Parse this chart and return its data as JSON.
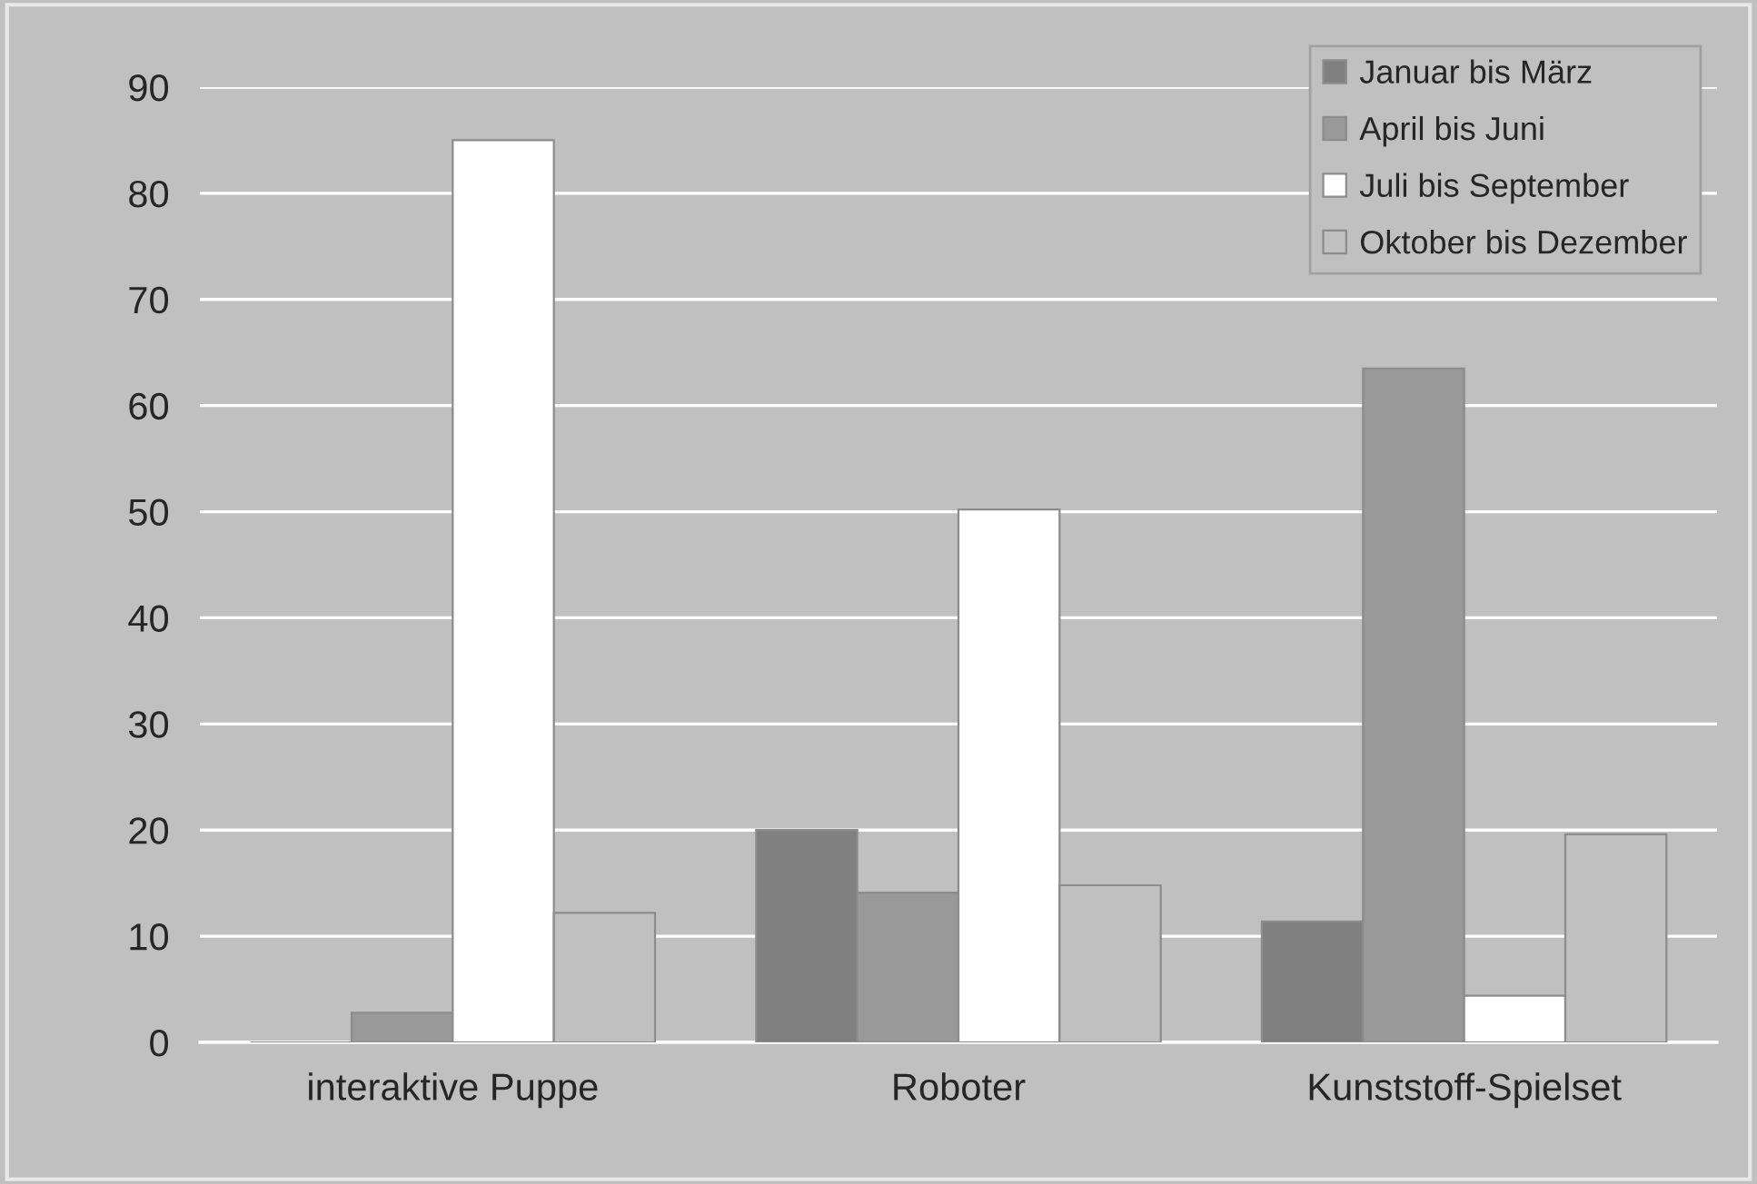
{
  "chart_data": {
    "type": "bar",
    "categories": [
      "interaktive Puppe",
      "Roboter",
      "Kunststoff-Spielset"
    ],
    "series": [
      {
        "name": "Januar bis März",
        "color": "#808080",
        "values": [
          0,
          20,
          11.4
        ]
      },
      {
        "name": "April bis Juni",
        "color": "#999999",
        "values": [
          2.8,
          14.1,
          63.5
        ]
      },
      {
        "name": "Juli bis September",
        "color": "#ffffff",
        "values": [
          85,
          50.2,
          4.4
        ]
      },
      {
        "name": "Oktober bis Dezember",
        "color": "#c0c0c0",
        "values": [
          12.2,
          14.8,
          19.6
        ]
      }
    ],
    "ylim": [
      0,
      90
    ],
    "yticks": [
      0,
      10,
      20,
      30,
      40,
      50,
      60,
      70,
      80,
      90
    ],
    "grid": "y",
    "legend": "top right"
  }
}
